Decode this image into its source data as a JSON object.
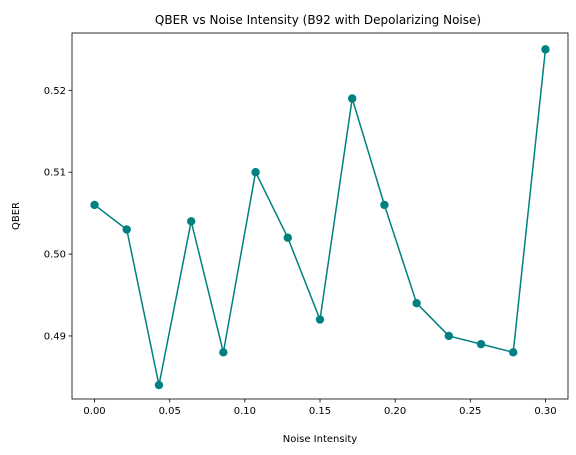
{
  "chart_data": {
    "type": "line",
    "title": "QBER vs Noise Intensity (B92 with Depolarizing Noise)",
    "xlabel": "Noise Intensity",
    "ylabel": "QBER",
    "xlim": [
      -0.015,
      0.315
    ],
    "ylim": [
      0.4823,
      0.527
    ],
    "xticks": [
      0.0,
      0.05,
      0.1,
      0.15,
      0.2,
      0.25,
      0.3
    ],
    "xtick_labels": [
      "0.00",
      "0.05",
      "0.10",
      "0.15",
      "0.20",
      "0.25",
      "0.30"
    ],
    "yticks": [
      0.49,
      0.5,
      0.51,
      0.52
    ],
    "ytick_labels": [
      "0.49",
      "0.50",
      "0.51",
      "0.52"
    ],
    "grid": false,
    "series": [
      {
        "color": "#008080",
        "marker": "circle",
        "x": [
          0.0,
          0.02143,
          0.04286,
          0.06429,
          0.08571,
          0.10714,
          0.12857,
          0.15,
          0.17143,
          0.19286,
          0.21429,
          0.23571,
          0.25714,
          0.27857,
          0.3
        ],
        "y": [
          0.506,
          0.503,
          0.484,
          0.504,
          0.488,
          0.51,
          0.502,
          0.492,
          0.519,
          0.506,
          0.494,
          0.49,
          0.489,
          0.488,
          0.525
        ]
      }
    ]
  }
}
